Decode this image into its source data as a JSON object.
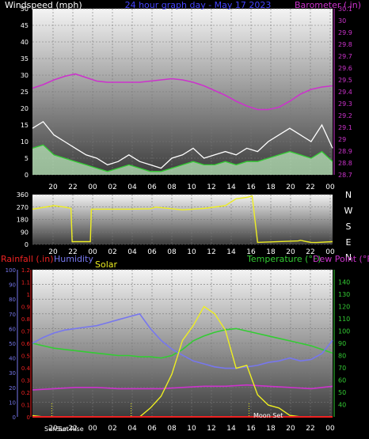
{
  "chart_data": [
    {
      "type": "line",
      "title": "24 hour graph day - May 17 2023",
      "ylabel_left": "Windspeed (mph)",
      "ylabel_right": "Barometer (.in)",
      "x_ticks": [
        "20",
        "22",
        "00",
        "02",
        "04",
        "06",
        "08",
        "10",
        "12",
        "14",
        "16",
        "18",
        "20",
        "22",
        "00"
      ],
      "ylim_left": [
        0,
        50
      ],
      "ylim_right": [
        28.7,
        30.1
      ],
      "y_ticks_left": [
        0,
        5,
        10,
        15,
        20,
        25,
        30,
        35,
        40,
        45,
        50
      ],
      "y_ticks_right": [
        "28.7",
        "28.8",
        "28.9",
        "29",
        "29.1",
        "29.2",
        "29.3",
        "29.4",
        "29.5",
        "29.6",
        "29.7",
        "29.8",
        "29.9",
        "30",
        "30.1"
      ],
      "grid": true,
      "series": [
        {
          "role": "barometer",
          "color": "#cc33cc",
          "x": [
            0,
            1,
            2,
            3,
            4,
            5,
            6,
            7,
            8,
            9,
            10,
            11,
            12,
            13,
            14,
            15,
            16,
            17,
            18,
            19,
            20,
            21,
            22,
            23,
            24,
            25,
            26,
            27,
            28
          ],
          "values": [
            29.43,
            29.46,
            29.5,
            29.53,
            29.55,
            29.52,
            29.49,
            29.48,
            29.48,
            29.48,
            29.48,
            29.49,
            29.5,
            29.51,
            29.5,
            29.48,
            29.45,
            29.41,
            29.37,
            29.32,
            29.28,
            29.25,
            29.25,
            29.27,
            29.32,
            29.38,
            29.42,
            29.44,
            29.45
          ]
        },
        {
          "role": "wind-gust",
          "color": "#ffffff",
          "x": [
            0,
            1,
            2,
            3,
            4,
            5,
            6,
            7,
            8,
            9,
            10,
            11,
            12,
            13,
            14,
            15,
            16,
            17,
            18,
            19,
            20,
            21,
            22,
            23,
            24,
            25,
            26,
            27,
            28
          ],
          "values": [
            14,
            16,
            12,
            10,
            8,
            6,
            5,
            3,
            4,
            6,
            4,
            3,
            2,
            5,
            6,
            8,
            5,
            6,
            7,
            6,
            8,
            7,
            10,
            12,
            14,
            12,
            10,
            15,
            8
          ]
        },
        {
          "role": "wind-average",
          "color": "#33cc33",
          "x": [
            0,
            1,
            2,
            3,
            4,
            5,
            6,
            7,
            8,
            9,
            10,
            11,
            12,
            13,
            14,
            15,
            16,
            17,
            18,
            19,
            20,
            21,
            22,
            23,
            24,
            25,
            26,
            27,
            28
          ],
          "values": [
            8,
            9,
            6,
            5,
            4,
            3,
            2,
            1,
            2,
            3,
            2,
            1,
            1,
            2,
            3,
            4,
            3,
            3,
            4,
            3,
            4,
            4,
            5,
            6,
            7,
            6,
            5,
            7,
            4
          ]
        }
      ]
    },
    {
      "type": "line",
      "ylabel_right": [
        "N",
        "W",
        "S",
        "E",
        "N"
      ],
      "x_ticks": [
        "20",
        "22",
        "00",
        "02",
        "04",
        "06",
        "08",
        "10",
        "12",
        "14",
        "16",
        "18",
        "20",
        "22",
        "00"
      ],
      "ylim": [
        0,
        360
      ],
      "y_ticks": [
        0,
        90,
        180,
        270,
        360
      ],
      "grid": true,
      "series": [
        {
          "role": "wind-direction",
          "color": "#eeee22",
          "x": [
            0,
            2,
            3,
            3.6,
            3.7,
            5.4,
            5.5,
            7,
            9,
            11,
            11.5,
            14,
            16,
            18,
            19,
            20,
            20.5,
            21,
            24.8,
            25,
            25.6,
            26,
            26.5,
            28
          ],
          "values": [
            255,
            280,
            270,
            260,
            20,
            20,
            255,
            255,
            255,
            258,
            270,
            250,
            260,
            280,
            330,
            340,
            350,
            15,
            25,
            30,
            20,
            15,
            14,
            20
          ]
        }
      ]
    },
    {
      "type": "line",
      "ylabel_left": "Rainfall (.in)",
      "ylabel_humidity": "Humidity",
      "ylabel_solar": "Solar",
      "ylabel_right": "Temperature (°F)",
      "ylabel_right2": "Dew Point (°F)",
      "x_ticks": [
        "20",
        "22",
        "00",
        "02",
        "04",
        "06",
        "08",
        "10",
        "12",
        "14",
        "16",
        "18",
        "20",
        "22",
        "00"
      ],
      "ylim_humidity": [
        0,
        100
      ],
      "ylim_rain": [
        0,
        1.2
      ],
      "ylim_temp": [
        30,
        150
      ],
      "y_ticks_humidity": [
        0,
        10,
        20,
        30,
        40,
        50,
        60,
        70,
        80,
        90,
        100
      ],
      "y_ticks_rain": [
        "0",
        "0.1",
        "0.2",
        "0.3",
        "0.4",
        "0.5",
        "0.6",
        "0.7",
        "0.8",
        "0.9",
        "1",
        "1.1",
        "1.2"
      ],
      "y_ticks_temp": [
        40,
        50,
        60,
        70,
        80,
        90,
        100,
        110,
        120,
        130,
        140
      ],
      "annotations": [
        "Sun Set",
        "Sun Rise",
        "Moon Set"
      ],
      "series": [
        {
          "role": "temperature",
          "color": "#33cc33",
          "x": [
            0,
            1,
            2,
            3,
            4,
            5,
            6,
            7,
            8,
            9,
            10,
            11,
            12,
            13,
            14,
            15,
            16,
            17,
            18,
            19,
            20,
            21,
            22,
            23,
            24,
            25,
            26,
            27,
            28
          ],
          "values": [
            90,
            88,
            86,
            85,
            84,
            83,
            82,
            81,
            80,
            80,
            79,
            79,
            78,
            80,
            85,
            92,
            96,
            99,
            101,
            102,
            100,
            98,
            96,
            94,
            92,
            90,
            88,
            85,
            82
          ]
        },
        {
          "role": "dew-point",
          "color": "#cc33cc",
          "x": [
            0,
            2,
            4,
            6,
            8,
            10,
            12,
            14,
            16,
            18,
            20,
            22,
            24,
            26,
            28
          ],
          "values": [
            52,
            53,
            54,
            54,
            53,
            53,
            53,
            54,
            55,
            55,
            56,
            55,
            54,
            53,
            55
          ]
        },
        {
          "role": "humidity",
          "color": "#7777ee",
          "x": [
            0,
            1,
            2,
            3,
            4,
            5,
            6,
            7,
            8,
            9,
            10,
            11,
            12,
            13,
            14,
            15,
            16,
            17,
            18,
            19,
            20,
            21,
            22,
            23,
            24,
            25,
            26,
            27,
            28
          ],
          "values": [
            50,
            54,
            57,
            59,
            60,
            61,
            62,
            64,
            66,
            68,
            70,
            60,
            52,
            46,
            42,
            38,
            36,
            34,
            33,
            33,
            34,
            35,
            37,
            38,
            40,
            38,
            39,
            43,
            52
          ]
        },
        {
          "role": "solar",
          "color": "#eeee22",
          "x": [
            0,
            1,
            2,
            3,
            4,
            5,
            6,
            7,
            8,
            9,
            10,
            11,
            12,
            13,
            14,
            15,
            16,
            17,
            18,
            19,
            20,
            21,
            22,
            23,
            24,
            25,
            26,
            27,
            28
          ],
          "values": [
            0.8,
            0,
            0,
            0,
            0,
            0,
            0,
            0,
            0,
            0,
            0,
            6,
            14,
            29,
            52,
            62,
            75,
            70,
            59,
            33,
            35,
            15,
            8,
            6,
            1,
            0,
            0,
            0,
            0
          ]
        },
        {
          "role": "rainfall",
          "color": "#ee2222",
          "x": [
            0,
            28
          ],
          "values": [
            0,
            0
          ]
        }
      ]
    }
  ]
}
